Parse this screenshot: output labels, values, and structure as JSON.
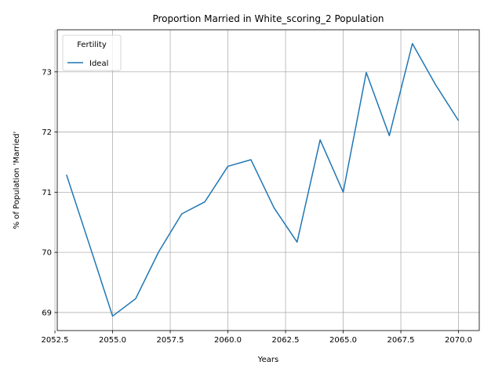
{
  "chart_data": {
    "type": "line",
    "title": "Proportion Married in White_scoring_2 Population",
    "xlabel": "Years",
    "ylabel": "% of Population 'Married'",
    "xlim": [
      2052.6,
      2070.9
    ],
    "ylim": [
      68.7,
      73.7
    ],
    "xticks": [
      2052.5,
      2055.0,
      2057.5,
      2060.0,
      2062.5,
      2065.0,
      2067.5,
      2070.0
    ],
    "xtick_labels": [
      "2052.5",
      "2055.0",
      "2057.5",
      "2060.0",
      "2062.5",
      "2065.0",
      "2067.5",
      "2070.0"
    ],
    "yticks": [
      69,
      70,
      71,
      72,
      73
    ],
    "ytick_labels": [
      "69",
      "70",
      "71",
      "72",
      "73"
    ],
    "grid": true,
    "legend": {
      "title": "Fertility",
      "placement": "top-left"
    },
    "series": [
      {
        "name": "Ideal",
        "color": "#1f77b4",
        "x": [
          2053,
          2054,
          2055,
          2056,
          2057,
          2058,
          2059,
          2060,
          2061,
          2062,
          2063,
          2064,
          2065,
          2066,
          2067,
          2068,
          2069,
          2070
        ],
        "values": [
          71.29,
          70.12,
          68.94,
          69.23,
          70.01,
          70.64,
          70.84,
          71.43,
          71.54,
          70.74,
          70.17,
          71.87,
          71.0,
          72.99,
          71.94,
          73.47,
          72.79,
          72.19
        ]
      }
    ]
  }
}
